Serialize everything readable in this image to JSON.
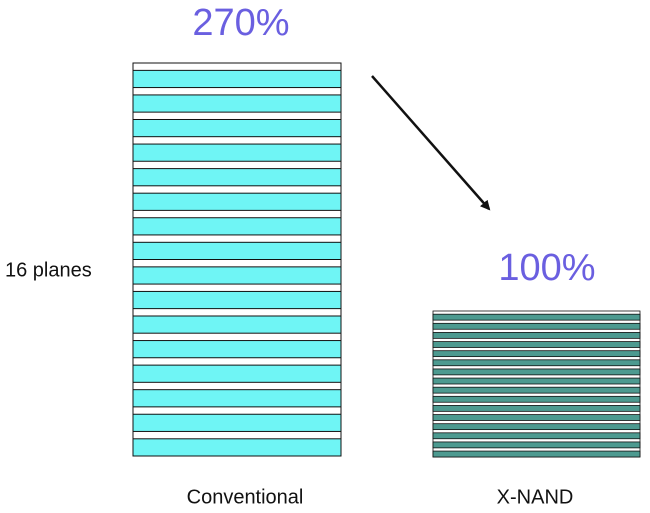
{
  "conventional": {
    "ratio": "270%",
    "label": "Conventional",
    "side_label": "16 planes"
  },
  "xnand": {
    "ratio": "100%",
    "label": "X-NAND"
  }
}
